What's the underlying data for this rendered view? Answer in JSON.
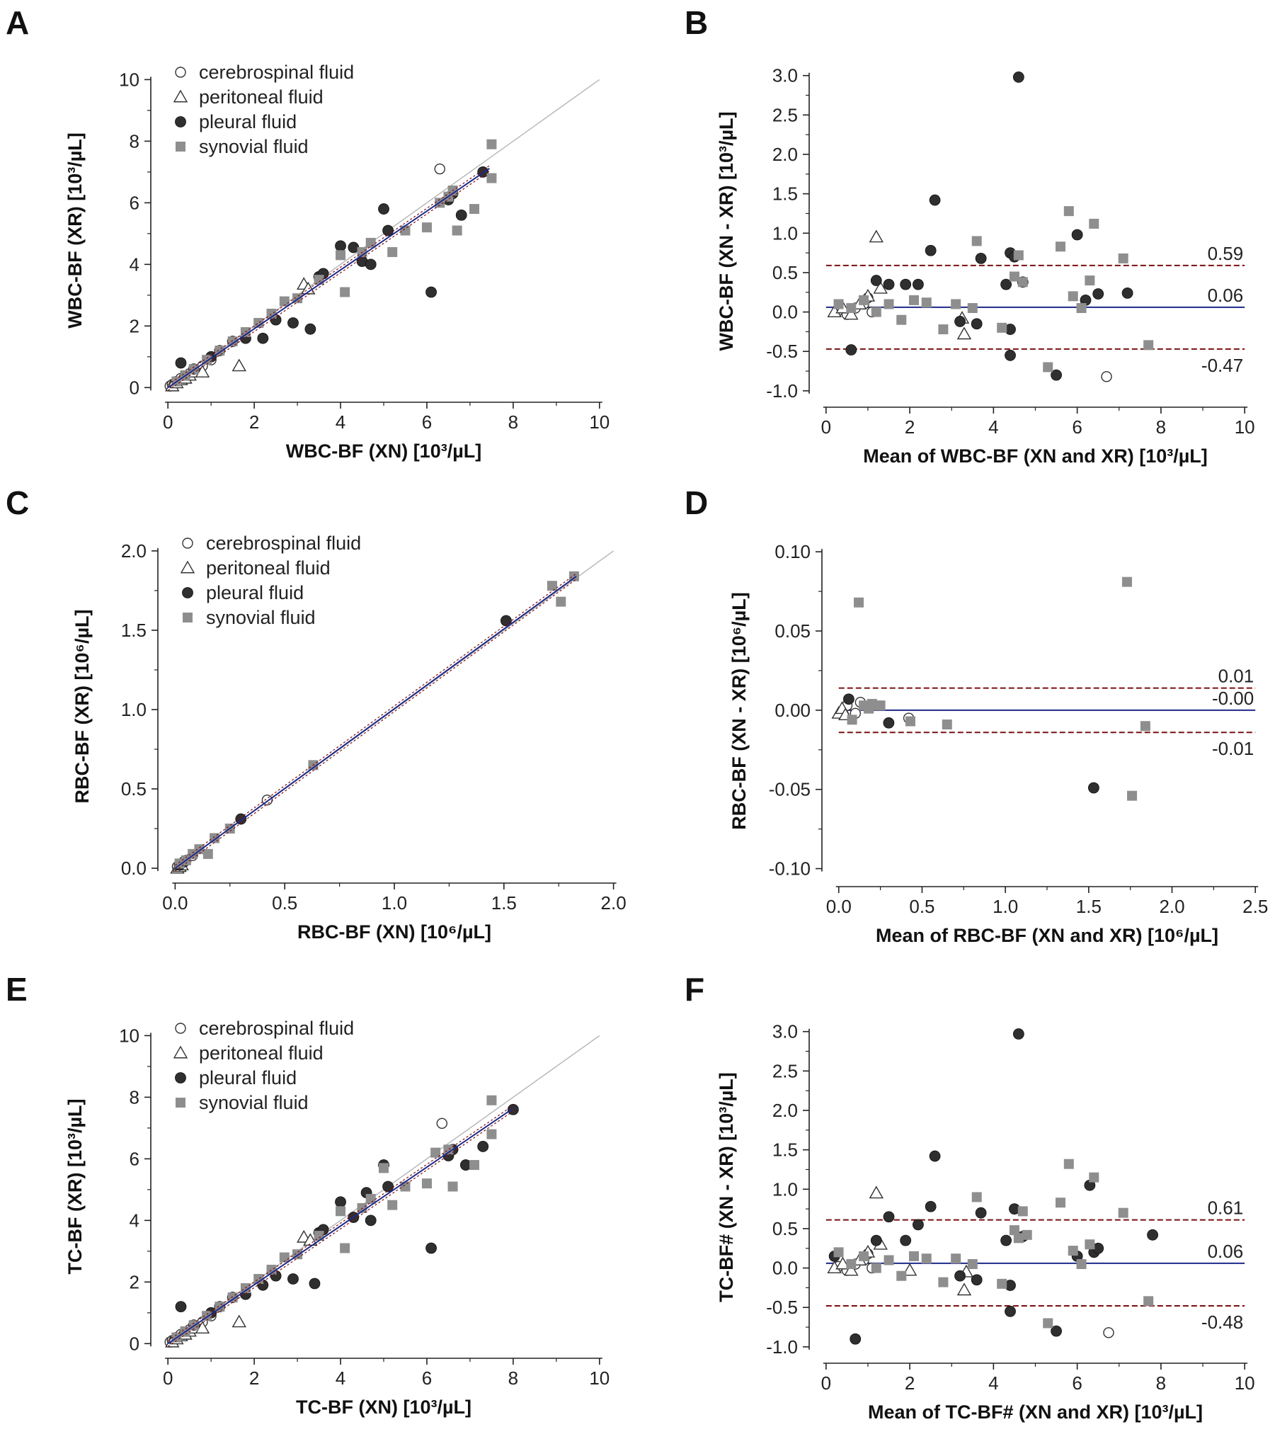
{
  "legend": {
    "items": [
      {
        "label": "cerebrospinal fluid",
        "marker": "open-circle"
      },
      {
        "label": "peritoneal fluid",
        "marker": "open-triangle"
      },
      {
        "label": "pleural fluid",
        "marker": "dark-circle"
      },
      {
        "label": "synovial fluid",
        "marker": "gray-square"
      }
    ]
  },
  "colors": {
    "csf": "#ffffff",
    "peritoneal": "#ffffff",
    "pleural": "#2f2f2f",
    "synovial": "#8e8e8e",
    "regression": "#1f2a8a",
    "bias": "#1f2a8a",
    "loa": "#7a1010",
    "identity": "#b5b5b5",
    "axis": "#222222"
  },
  "chart_data": [
    {
      "panel": "A",
      "type": "scatter",
      "xlabel": "WBC-BF (XN) [10³/µL]",
      "ylabel": "WBC-BF (XR) [10³/µL]",
      "xlim": [
        -0.2,
        10.2
      ],
      "ylim": [
        -0.2,
        10.4
      ],
      "xticks": [
        0,
        2,
        4,
        6,
        8,
        10
      ],
      "yticks": [
        0,
        2,
        4,
        6,
        8,
        10
      ],
      "identity_line": true,
      "regression": {
        "slope": 0.955,
        "intercept": 0.0,
        "x_range": [
          0,
          7.45
        ]
      },
      "series": [
        {
          "name": "cerebrospinal fluid",
          "x": [
            0.05,
            0.1,
            0.15,
            0.2,
            0.3,
            0.4,
            0.5,
            0.6,
            0.8,
            1.0,
            6.3
          ],
          "y": [
            0.05,
            0.1,
            0.12,
            0.2,
            0.3,
            0.35,
            0.45,
            0.6,
            0.7,
            0.9,
            7.1
          ]
        },
        {
          "name": "peritoneal fluid",
          "x": [
            0.1,
            0.2,
            0.3,
            0.4,
            0.5,
            0.6,
            0.8,
            1.65,
            3.15,
            3.25
          ],
          "y": [
            0.05,
            0.15,
            0.25,
            0.3,
            0.4,
            0.5,
            0.5,
            0.7,
            3.35,
            3.2
          ]
        },
        {
          "name": "pleural fluid",
          "x": [
            0.3,
            0.6,
            1.0,
            1.2,
            1.5,
            1.8,
            2.2,
            2.5,
            2.9,
            3.3,
            3.5,
            3.6,
            4.0,
            4.3,
            4.5,
            4.7,
            5.0,
            5.1,
            6.1,
            6.5,
            6.6,
            6.8,
            7.3
          ],
          "y": [
            0.8,
            0.6,
            1.0,
            1.2,
            1.5,
            1.6,
            1.6,
            2.2,
            2.1,
            1.9,
            3.6,
            3.7,
            4.6,
            4.55,
            4.1,
            4.0,
            5.8,
            5.1,
            3.1,
            6.1,
            6.3,
            5.6,
            7.0
          ]
        },
        {
          "name": "synovial fluid",
          "x": [
            0.2,
            0.4,
            0.6,
            0.9,
            1.2,
            1.5,
            1.8,
            2.1,
            2.4,
            2.7,
            3.0,
            3.5,
            4.0,
            4.1,
            4.5,
            4.7,
            5.2,
            5.5,
            6.0,
            6.3,
            6.5,
            6.6,
            6.7,
            7.1,
            7.5,
            7.5
          ],
          "y": [
            0.2,
            0.4,
            0.6,
            0.9,
            1.2,
            1.5,
            1.8,
            2.1,
            2.4,
            2.8,
            2.9,
            3.5,
            4.3,
            3.1,
            4.4,
            4.7,
            4.4,
            5.1,
            5.2,
            6.0,
            6.2,
            6.4,
            5.1,
            5.8,
            7.9,
            6.8
          ]
        }
      ]
    },
    {
      "panel": "B",
      "type": "scatter",
      "xlabel": "Mean of WBC-BF (XN and XR) [10³/µL]",
      "ylabel": "WBC-BF (XN - XR) [10³/µL]",
      "xlim": [
        -0.2,
        10.2
      ],
      "ylim": [
        -1.1,
        3.15
      ],
      "xticks": [
        0,
        2,
        4,
        6,
        8,
        10
      ],
      "yticks": [
        -1.0,
        -0.5,
        0.0,
        0.5,
        1.0,
        1.5,
        2.0,
        2.5,
        3.0
      ],
      "bias": 0.06,
      "upper_loa": 0.59,
      "lower_loa": -0.47,
      "bias_label": "0.06",
      "upper_label": "0.59",
      "lower_label": "-0.47",
      "series": [
        {
          "name": "cerebrospinal fluid",
          "x": [
            0.3,
            0.5,
            0.7,
            0.9,
            1.0,
            1.1,
            6.7
          ],
          "y": [
            0.02,
            -0.03,
            0.05,
            0.1,
            0.18,
            0.0,
            -0.82
          ]
        },
        {
          "name": "peritoneal fluid",
          "x": [
            0.2,
            0.4,
            0.6,
            0.8,
            1.0,
            1.2,
            1.3,
            3.3,
            3.25
          ],
          "y": [
            0.0,
            0.05,
            -0.03,
            0.1,
            0.2,
            0.95,
            0.3,
            -0.28,
            -0.08
          ]
        },
        {
          "name": "pleural fluid",
          "x": [
            0.6,
            1.2,
            1.5,
            1.9,
            2.2,
            2.5,
            2.6,
            3.2,
            3.6,
            3.7,
            4.3,
            4.4,
            4.4,
            4.4,
            4.5,
            4.6,
            4.7,
            5.5,
            6.0,
            6.2,
            6.5,
            7.2
          ],
          "y": [
            -0.48,
            0.4,
            0.35,
            0.35,
            0.35,
            0.78,
            1.42,
            -0.12,
            -0.15,
            0.68,
            0.35,
            -0.55,
            -0.22,
            0.75,
            0.7,
            2.98,
            0.38,
            -0.8,
            0.98,
            0.15,
            0.23,
            0.24
          ]
        },
        {
          "name": "synovial fluid",
          "x": [
            0.3,
            0.6,
            0.9,
            1.2,
            1.5,
            1.8,
            2.1,
            2.4,
            2.8,
            3.1,
            3.5,
            3.6,
            4.2,
            4.5,
            4.6,
            4.7,
            5.3,
            5.6,
            5.8,
            5.9,
            6.1,
            6.3,
            6.4,
            7.1,
            7.7
          ],
          "y": [
            0.1,
            0.05,
            0.15,
            0.0,
            0.1,
            -0.1,
            0.15,
            0.12,
            -0.22,
            0.1,
            0.05,
            0.9,
            -0.2,
            0.45,
            0.72,
            0.38,
            -0.7,
            0.83,
            1.28,
            0.2,
            0.05,
            0.4,
            1.12,
            0.68,
            -0.42
          ]
        }
      ]
    },
    {
      "panel": "C",
      "type": "scatter",
      "xlabel": "RBC-BF (XN) [10⁶/µL]",
      "ylabel": "RBC-BF (XR) [10⁶/µL]",
      "xlim": [
        -0.04,
        2.04
      ],
      "ylim": [
        -0.04,
        2.08
      ],
      "xticks": [
        0.0,
        0.5,
        1.0,
        1.5,
        2.0
      ],
      "yticks": [
        0.0,
        0.5,
        1.0,
        1.5,
        2.0
      ],
      "identity_line": true,
      "regression": {
        "slope": 1.005,
        "intercept": 0.0,
        "x_range": [
          0,
          1.83
        ]
      },
      "series": [
        {
          "name": "cerebrospinal fluid",
          "x": [
            0.01,
            0.03,
            0.05,
            0.08,
            0.42
          ],
          "y": [
            0.01,
            0.03,
            0.05,
            0.08,
            0.43
          ]
        },
        {
          "name": "peritoneal fluid",
          "x": [
            0.01,
            0.02,
            0.03
          ],
          "y": [
            0.0,
            0.01,
            0.02
          ]
        },
        {
          "name": "pleural fluid",
          "x": [
            0.02,
            0.04,
            0.3,
            1.51
          ],
          "y": [
            0.02,
            0.04,
            0.31,
            1.56
          ]
        },
        {
          "name": "synovial fluid",
          "x": [
            0.02,
            0.05,
            0.08,
            0.11,
            0.15,
            0.18,
            0.25,
            0.63,
            1.72,
            1.76,
            1.82
          ],
          "y": [
            0.03,
            0.05,
            0.09,
            0.12,
            0.09,
            0.19,
            0.25,
            0.65,
            1.78,
            1.68,
            1.84
          ]
        }
      ]
    },
    {
      "panel": "D",
      "type": "scatter",
      "xlabel": "Mean of RBC-BF (XN and XR) [10⁶/µL]",
      "ylabel": "RBC-BF (XN - XR) [10⁶/µL]",
      "xlim": [
        -0.05,
        2.55
      ],
      "ylim": [
        -0.106,
        0.105
      ],
      "xticks": [
        0.0,
        0.5,
        1.0,
        1.5,
        2.0,
        2.5
      ],
      "yticks": [
        -0.1,
        -0.05,
        0.0,
        0.05,
        0.1
      ],
      "bias": 0.0,
      "upper_loa": 0.014,
      "lower_loa": -0.014,
      "bias_label": "-0.00",
      "upper_label": "0.01",
      "lower_label": "-0.01",
      "series": [
        {
          "name": "cerebrospinal fluid",
          "x": [
            0.05,
            0.1,
            0.13,
            0.42
          ],
          "y": [
            0.003,
            -0.002,
            0.005,
            -0.005
          ]
        },
        {
          "name": "peritoneal fluid",
          "x": [
            0.0,
            0.02,
            0.04
          ],
          "y": [
            -0.002,
            0.001,
            -0.003
          ]
        },
        {
          "name": "pleural fluid",
          "x": [
            0.06,
            0.3,
            1.53
          ],
          "y": [
            0.007,
            -0.008,
            -0.049
          ]
        },
        {
          "name": "synovial fluid",
          "x": [
            0.08,
            0.12,
            0.15,
            0.18,
            0.2,
            0.23,
            0.25,
            0.43,
            0.65,
            1.73,
            1.76,
            1.84
          ],
          "y": [
            -0.006,
            0.068,
            0.003,
            0.001,
            0.004,
            0.003,
            0.003,
            -0.007,
            -0.009,
            0.081,
            -0.054,
            -0.01
          ]
        }
      ]
    },
    {
      "panel": "E",
      "type": "scatter",
      "xlabel": "TC-BF (XN) [10³/µL]",
      "ylabel": "TC-BF (XR) [10³/µL]",
      "xlim": [
        -0.2,
        10.2
      ],
      "ylim": [
        -0.2,
        10.4
      ],
      "xticks": [
        0,
        2,
        4,
        6,
        8,
        10
      ],
      "yticks": [
        0,
        2,
        4,
        6,
        8,
        10
      ],
      "identity_line": true,
      "regression": {
        "slope": 0.955,
        "intercept": 0.0,
        "x_range": [
          0,
          8.0
        ]
      },
      "series": [
        {
          "name": "cerebrospinal fluid",
          "x": [
            0.05,
            0.1,
            0.15,
            0.2,
            0.3,
            0.4,
            0.5,
            0.6,
            0.8,
            1.0,
            6.35
          ],
          "y": [
            0.05,
            0.1,
            0.12,
            0.2,
            0.3,
            0.35,
            0.45,
            0.6,
            0.7,
            0.9,
            7.15
          ]
        },
        {
          "name": "peritoneal fluid",
          "x": [
            0.1,
            0.2,
            0.3,
            0.4,
            0.5,
            0.6,
            0.8,
            1.65,
            3.15,
            3.3
          ],
          "y": [
            0.05,
            0.15,
            0.25,
            0.3,
            0.4,
            0.5,
            0.5,
            0.7,
            3.45,
            3.35
          ]
        },
        {
          "name": "pleural fluid",
          "x": [
            0.3,
            0.6,
            1.0,
            1.2,
            1.5,
            1.8,
            2.2,
            2.5,
            2.9,
            3.4,
            3.5,
            3.6,
            4.0,
            4.3,
            4.6,
            4.7,
            5.0,
            5.1,
            6.1,
            6.5,
            6.6,
            6.9,
            7.3,
            8.0
          ],
          "y": [
            1.2,
            0.6,
            1.0,
            1.2,
            1.5,
            1.6,
            1.9,
            2.2,
            2.1,
            1.95,
            3.6,
            3.7,
            4.6,
            4.1,
            4.9,
            4.0,
            5.8,
            5.1,
            3.1,
            6.1,
            6.3,
            5.8,
            6.4,
            7.6
          ]
        },
        {
          "name": "synovial fluid",
          "x": [
            0.2,
            0.4,
            0.6,
            0.9,
            1.2,
            1.5,
            1.8,
            2.1,
            2.4,
            2.7,
            3.0,
            3.5,
            4.0,
            4.1,
            4.5,
            4.7,
            5.0,
            5.2,
            5.5,
            6.0,
            6.2,
            6.5,
            6.6,
            7.1,
            7.5,
            7.5
          ],
          "y": [
            0.2,
            0.4,
            0.6,
            0.9,
            1.2,
            1.5,
            1.8,
            2.1,
            2.4,
            2.8,
            2.9,
            3.5,
            4.3,
            3.1,
            4.4,
            4.7,
            5.7,
            4.5,
            5.1,
            5.2,
            6.2,
            6.3,
            5.1,
            5.8,
            7.9,
            6.8
          ]
        }
      ]
    },
    {
      "panel": "F",
      "type": "scatter",
      "xlabel": "Mean of TC-BF# (XN and XR) [10³/µL]",
      "ylabel": "TC-BF# (XN - XR) [10³/µL]",
      "xlim": [
        -0.2,
        10.2
      ],
      "ylim": [
        -1.1,
        3.15
      ],
      "xticks": [
        0,
        2,
        4,
        6,
        8,
        10
      ],
      "yticks": [
        -1.0,
        -0.5,
        0.0,
        0.5,
        1.0,
        1.5,
        2.0,
        2.5,
        3.0
      ],
      "bias": 0.06,
      "upper_loa": 0.61,
      "lower_loa": -0.48,
      "bias_label": "0.06",
      "upper_label": "0.61",
      "lower_label": "-0.48",
      "series": [
        {
          "name": "cerebrospinal fluid",
          "x": [
            0.3,
            0.5,
            0.7,
            0.9,
            1.0,
            1.1,
            6.75
          ],
          "y": [
            0.02,
            -0.03,
            0.05,
            0.1,
            0.18,
            0.0,
            -0.82
          ]
        },
        {
          "name": "peritoneal fluid",
          "x": [
            0.2,
            0.4,
            0.6,
            0.8,
            1.0,
            1.2,
            1.3,
            2.0,
            3.3,
            3.35
          ],
          "y": [
            0.0,
            0.05,
            -0.03,
            0.1,
            0.2,
            0.95,
            0.3,
            -0.03,
            -0.28,
            -0.05
          ]
        },
        {
          "name": "pleural fluid",
          "x": [
            0.2,
            0.7,
            1.2,
            1.5,
            1.9,
            2.2,
            2.5,
            2.6,
            3.2,
            3.6,
            3.7,
            4.3,
            4.4,
            4.4,
            4.5,
            4.6,
            4.7,
            5.5,
            6.0,
            6.3,
            6.4,
            6.5,
            7.8
          ],
          "y": [
            0.15,
            -0.9,
            0.35,
            0.65,
            0.35,
            0.55,
            0.78,
            1.42,
            -0.1,
            -0.15,
            0.7,
            0.35,
            -0.55,
            -0.22,
            0.75,
            2.97,
            0.4,
            -0.8,
            0.15,
            1.05,
            0.2,
            0.25,
            0.42
          ]
        },
        {
          "name": "synovial fluid",
          "x": [
            0.3,
            0.6,
            0.9,
            1.2,
            1.5,
            1.8,
            2.1,
            2.4,
            2.8,
            3.1,
            3.5,
            3.6,
            4.2,
            4.5,
            4.6,
            4.7,
            4.8,
            5.3,
            5.6,
            5.8,
            5.9,
            6.1,
            6.3,
            6.4,
            7.1,
            7.7
          ],
          "y": [
            0.2,
            0.05,
            0.15,
            0.0,
            0.1,
            -0.1,
            0.15,
            0.12,
            -0.18,
            0.12,
            0.05,
            0.9,
            -0.2,
            0.48,
            0.38,
            0.72,
            0.42,
            -0.7,
            0.83,
            1.32,
            0.22,
            0.05,
            0.3,
            1.15,
            0.7,
            -0.42
          ]
        }
      ]
    }
  ]
}
